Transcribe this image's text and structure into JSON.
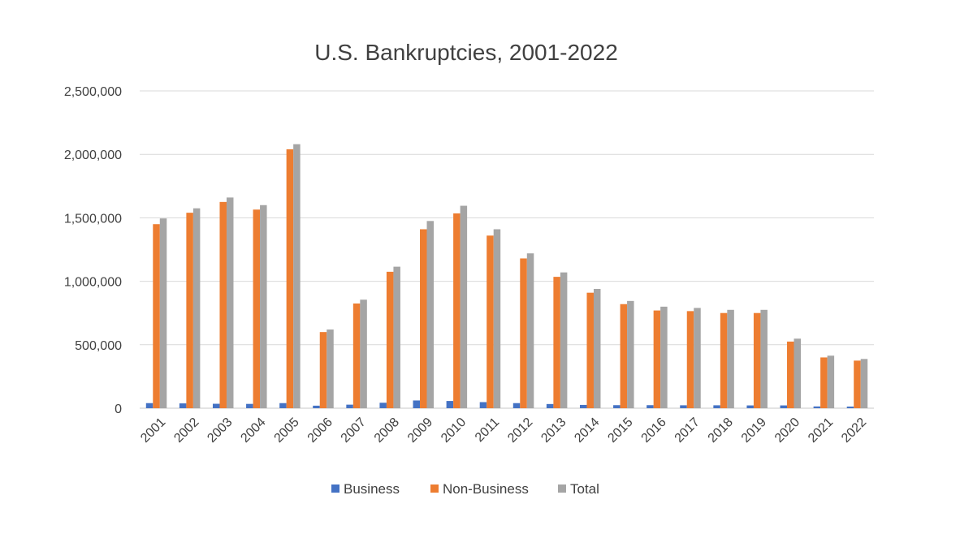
{
  "chart_data": {
    "type": "bar",
    "title": "U.S. Bankruptcies, 2001-2022",
    "xlabel": "",
    "ylabel": "",
    "categories": [
      "2001",
      "2002",
      "2003",
      "2004",
      "2005",
      "2006",
      "2007",
      "2008",
      "2009",
      "2010",
      "2011",
      "2012",
      "2013",
      "2014",
      "2015",
      "2016",
      "2017",
      "2018",
      "2019",
      "2020",
      "2021",
      "2022"
    ],
    "series": [
      {
        "name": "Business",
        "color": "#4472C4",
        "values": [
          40000,
          38000,
          35000,
          34000,
          40000,
          20000,
          28000,
          43000,
          61000,
          57000,
          48000,
          40000,
          33000,
          26000,
          24000,
          24000,
          23000,
          23000,
          22000,
          22000,
          14000,
          13000
        ]
      },
      {
        "name": "Non-Business",
        "color": "#ED7D31",
        "values": [
          1450000,
          1540000,
          1625000,
          1565000,
          2040000,
          600000,
          825000,
          1075000,
          1410000,
          1535000,
          1360000,
          1180000,
          1035000,
          910000,
          820000,
          770000,
          765000,
          750000,
          750000,
          525000,
          400000,
          375000
        ]
      },
      {
        "name": "Total",
        "color": "#A5A5A5",
        "values": [
          1495000,
          1575000,
          1660000,
          1600000,
          2080000,
          620000,
          855000,
          1115000,
          1475000,
          1595000,
          1410000,
          1220000,
          1070000,
          940000,
          845000,
          800000,
          790000,
          775000,
          775000,
          548000,
          414000,
          388000
        ]
      }
    ],
    "ylim": [
      0,
      2500000
    ],
    "yticks": [
      0,
      500000,
      1000000,
      1500000,
      2000000,
      2500000
    ],
    "ytick_labels": [
      "0",
      "500,000",
      "1,000,000",
      "1,500,000",
      "2,000,000",
      "2,500,000"
    ],
    "grid": true,
    "legend_position": "bottom"
  }
}
